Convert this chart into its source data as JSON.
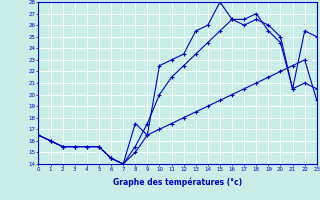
{
  "title": "Graphe des températures (°c)",
  "bg_color": "#c8eee8",
  "line_color": "#0000cc",
  "xlim": [
    0,
    23
  ],
  "ylim": [
    14,
    28
  ],
  "xticks": [
    0,
    1,
    2,
    3,
    4,
    5,
    6,
    7,
    8,
    9,
    10,
    11,
    12,
    13,
    14,
    15,
    16,
    17,
    18,
    19,
    20,
    21,
    22,
    23
  ],
  "yticks": [
    14,
    15,
    16,
    17,
    18,
    19,
    20,
    21,
    22,
    23,
    24,
    25,
    26,
    27,
    28
  ],
  "line1_x": [
    0,
    1,
    2,
    3,
    4,
    5,
    6,
    7,
    8,
    9,
    10,
    11,
    12,
    13,
    14,
    15,
    16,
    17,
    18,
    19,
    20,
    21,
    22,
    23
  ],
  "line1_y": [
    16.5,
    16.0,
    15.5,
    15.5,
    15.5,
    15.5,
    14.5,
    14.0,
    15.0,
    16.5,
    17.0,
    17.5,
    18.0,
    18.5,
    19.0,
    19.5,
    20.0,
    20.5,
    21.0,
    21.5,
    22.0,
    22.5,
    23.0,
    19.5
  ],
  "line2_x": [
    0,
    1,
    2,
    3,
    4,
    5,
    6,
    7,
    8,
    9,
    10,
    11,
    12,
    13,
    14,
    15,
    16,
    17,
    18,
    19,
    20,
    21,
    22,
    23
  ],
  "line2_y": [
    16.5,
    16.0,
    15.5,
    15.5,
    15.5,
    15.5,
    14.5,
    14.0,
    15.5,
    17.5,
    20.0,
    21.5,
    22.5,
    23.5,
    24.5,
    25.5,
    26.5,
    26.0,
    26.5,
    26.0,
    25.0,
    20.5,
    21.0,
    20.5
  ],
  "line3_x": [
    0,
    1,
    2,
    3,
    4,
    5,
    6,
    7,
    8,
    9,
    10,
    11,
    12,
    13,
    14,
    15,
    16,
    17,
    18,
    19,
    20,
    21,
    22,
    23
  ],
  "line3_y": [
    16.5,
    16.0,
    15.5,
    15.5,
    15.5,
    15.5,
    14.5,
    14.0,
    17.5,
    16.5,
    22.5,
    23.0,
    23.5,
    25.5,
    26.0,
    28.0,
    26.5,
    26.5,
    27.0,
    25.5,
    24.5,
    20.5,
    25.5,
    25.0
  ]
}
